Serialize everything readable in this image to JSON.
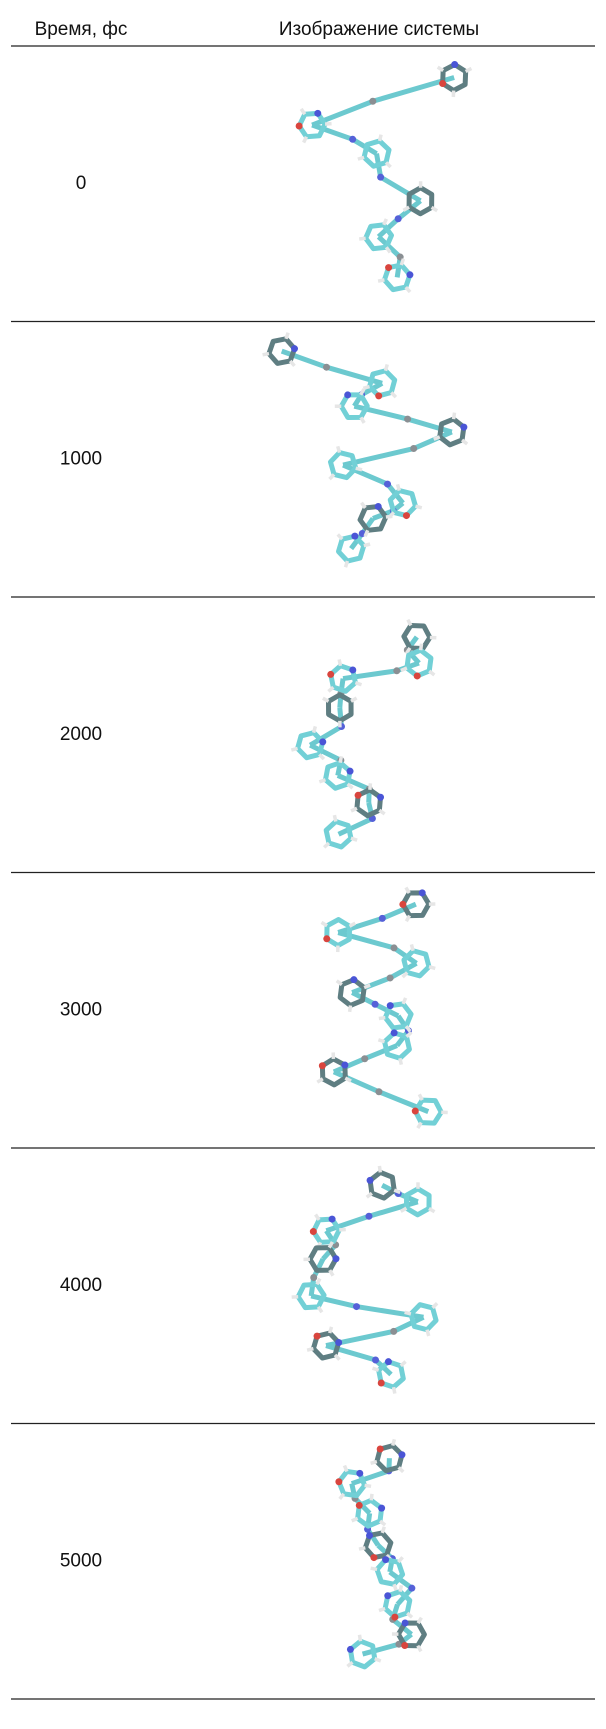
{
  "table": {
    "header": [
      "Время, фс",
      "Изображение системы"
    ],
    "rows": [
      [
        "0"
      ],
      [
        "1000"
      ],
      [
        "2000"
      ],
      [
        "3000"
      ],
      [
        "4000"
      ],
      [
        "5000"
      ]
    ]
  }
}
